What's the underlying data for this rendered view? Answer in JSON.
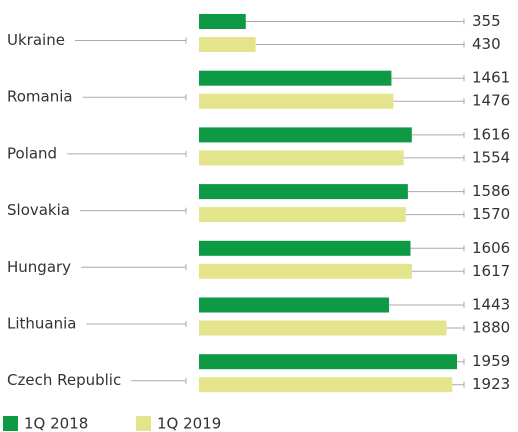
{
  "chart_data": {
    "type": "bar",
    "orientation": "horizontal",
    "categories": [
      "Ukraine",
      "Romania",
      "Poland",
      "Slovakia",
      "Hungary",
      "Lithuania",
      "Czech Republic"
    ],
    "series": [
      {
        "name": "1Q 2018",
        "color": "#0e9a44",
        "values": [
          355,
          1461,
          1616,
          1586,
          1606,
          1443,
          1959
        ]
      },
      {
        "name": "1Q 2019",
        "color": "#e4e48c",
        "values": [
          430,
          1476,
          1554,
          1570,
          1617,
          1880,
          1923
        ]
      }
    ],
    "legend": "bottom-left"
  }
}
